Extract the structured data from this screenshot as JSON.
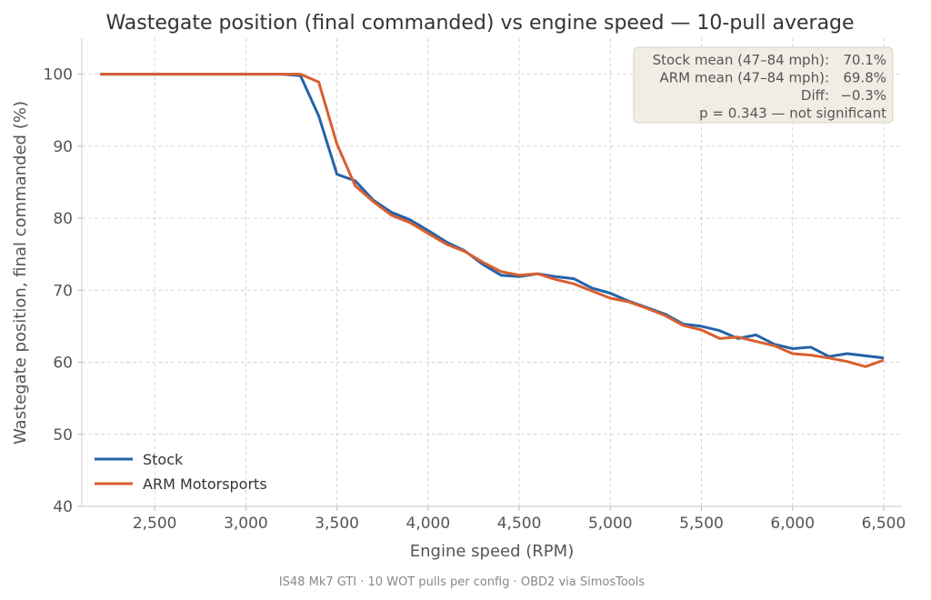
{
  "chart_data": {
    "type": "line",
    "title": "Wastegate position (final commanded) vs engine speed — 10-pull average",
    "xlabel": "Engine speed (RPM)",
    "ylabel": "Wastegate position, final commanded (%)",
    "footer": "IS48 Mk7 GTI · 10 WOT pulls per config · OBD2 via SimosTools",
    "xlim": [
      2100,
      6600
    ],
    "ylim": [
      40,
      105
    ],
    "xticks": [
      2500,
      3000,
      3500,
      4000,
      4500,
      5000,
      5500,
      6000,
      6500
    ],
    "xtick_labels": [
      "2,500",
      "3,000",
      "3,500",
      "4,000",
      "4,500",
      "5,000",
      "5,500",
      "6,000",
      "6,500"
    ],
    "yticks": [
      40,
      50,
      60,
      70,
      80,
      90,
      100
    ],
    "ytick_labels": [
      "40",
      "50",
      "60",
      "70",
      "80",
      "90",
      "100"
    ],
    "grid": true,
    "legend_position": "bottom-left",
    "x": [
      2200,
      2300,
      2400,
      2500,
      2600,
      2700,
      2800,
      2900,
      3000,
      3100,
      3200,
      3300,
      3400,
      3500,
      3600,
      3700,
      3800,
      3900,
      4000,
      4100,
      4200,
      4300,
      4400,
      4500,
      4600,
      4700,
      4800,
      4900,
      5000,
      5100,
      5200,
      5300,
      5400,
      5500,
      5600,
      5700,
      5800,
      5900,
      6000,
      6100,
      6200,
      6300,
      6400,
      6500
    ],
    "series": [
      {
        "name": "Stock",
        "color": "#2463a8",
        "values": [
          100,
          100,
          100,
          100,
          100,
          100,
          100,
          100,
          100,
          100,
          100,
          99.8,
          94.2,
          86.1,
          85.2,
          82.5,
          80.8,
          79.8,
          78.3,
          76.7,
          75.5,
          73.6,
          72.1,
          71.9,
          72.3,
          71.9,
          71.6,
          70.3,
          69.6,
          68.5,
          67.6,
          66.7,
          65.3,
          65.0,
          64.4,
          63.3,
          63.8,
          62.5,
          61.9,
          62.1,
          60.8,
          61.2,
          60.9,
          60.6
        ]
      },
      {
        "name": "ARM Motorsports",
        "color": "#d95f30",
        "values": [
          100,
          100,
          100,
          100,
          100,
          100,
          100,
          100,
          100,
          100,
          100,
          100,
          98.9,
          90.3,
          84.5,
          82.3,
          80.4,
          79.4,
          77.9,
          76.4,
          75.4,
          73.9,
          72.6,
          72.1,
          72.3,
          71.5,
          70.9,
          69.9,
          68.9,
          68.4,
          67.5,
          66.5,
          65.1,
          64.5,
          63.3,
          63.5,
          62.9,
          62.3,
          61.2,
          61.0,
          60.6,
          60.1,
          59.4,
          60.3
        ]
      }
    ],
    "annotation": {
      "lines": [
        [
          "Stock mean (47–84 mph):",
          "70.1%"
        ],
        [
          "ARM mean (47–84 mph):",
          "69.8%"
        ],
        [
          "Diff:",
          "−0.3%"
        ],
        [
          "p = 0.343  — not significant",
          ""
        ]
      ],
      "position": "top-right"
    }
  }
}
